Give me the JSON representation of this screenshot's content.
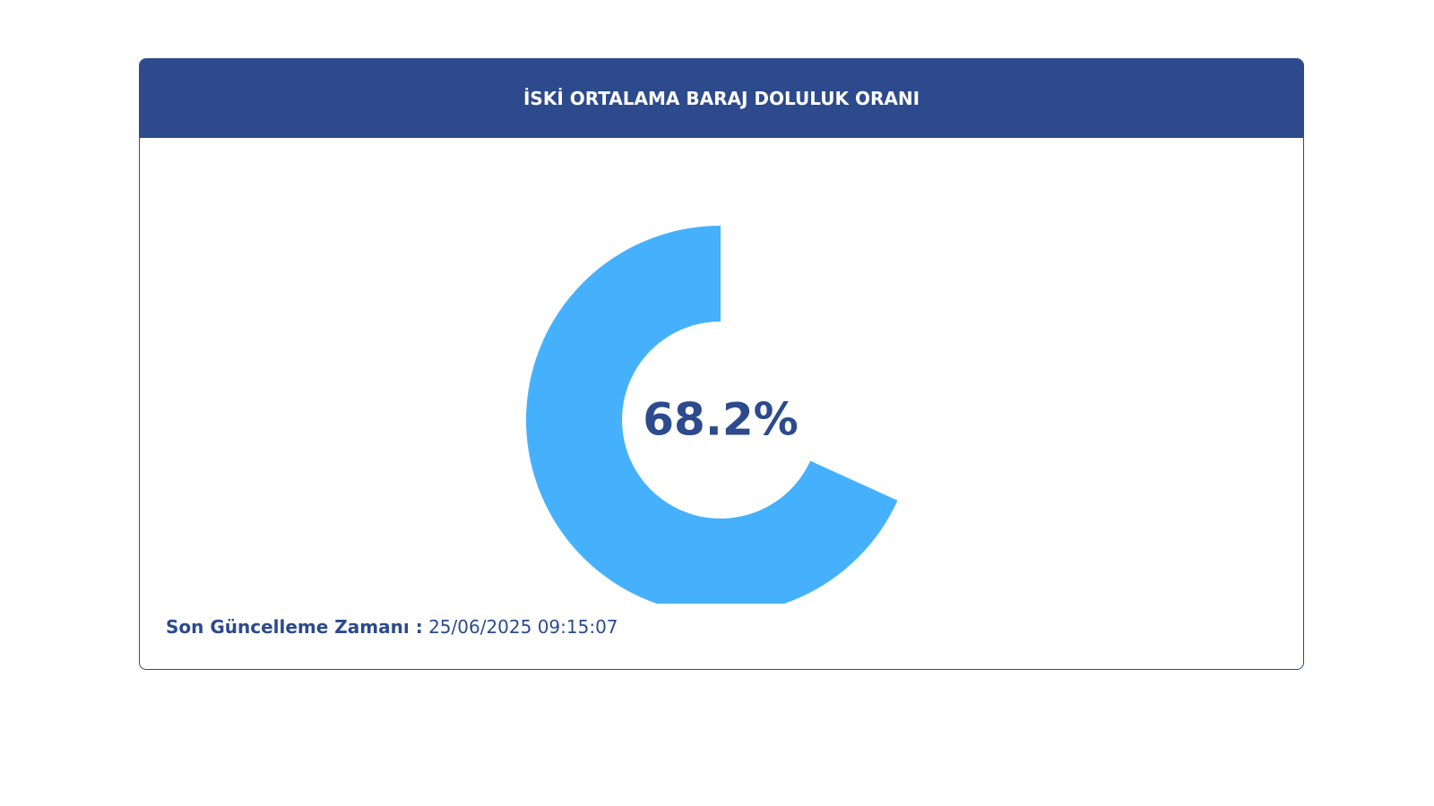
{
  "card": {
    "title": "İSKİ ORTALAMA BARAJ DOLULUK ORANI",
    "footer_label": "Son Güncelleme Zamanı :",
    "footer_value": "25/06/2025 09:15:07"
  },
  "chart_data": {
    "type": "donut",
    "values": [
      68.2
    ],
    "value_labels": [
      "68.2%"
    ],
    "color": "#45b1fd"
  }
}
